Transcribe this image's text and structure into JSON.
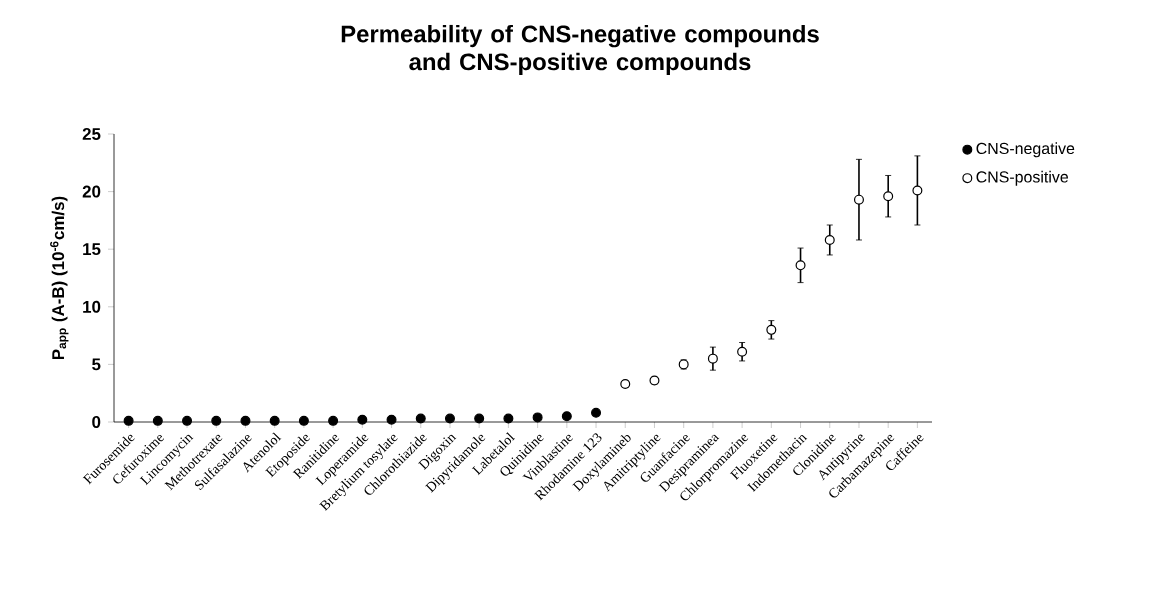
{
  "chart_data": {
    "type": "scatter",
    "title": "Permeability of CNS-negative compounds and CNS-positive compounds",
    "ylabel": "P$_{app}$ (A-B) (10$^{-6}$cm/s)",
    "categories": [
      "Furosemide",
      "Cefuroxime",
      "Lincomycin",
      "Methotrexate",
      "Sulfasalazine",
      "Atenolol",
      "Etoposide",
      "Ranitidine",
      "Loperamide",
      "Bretylium tosylate",
      "Chlorothiazide",
      "Digoxin",
      "Dipyridamole",
      "Labetalol",
      "Quinidine",
      "Vinblastine",
      "Rhodamine 123",
      "Doxylamineb",
      "Amitriptyline",
      "Guanfacine",
      "Desipraminea",
      "Chlorpromazine",
      "Fluoxetine",
      "Indomethacin",
      "Clonidine",
      "Antipyrine",
      "Carbamazepine",
      "Caffeine"
    ],
    "series": [
      {
        "name": "CNS-negative",
        "color": "#000000",
        "values": [
          0.1,
          0.1,
          0.1,
          0.1,
          0.1,
          0.1,
          0.1,
          0.1,
          0.2,
          0.2,
          0.3,
          0.3,
          0.3,
          0.3,
          0.4,
          0.5,
          0.8,
          null,
          null,
          null,
          null,
          null,
          null,
          null,
          null,
          null,
          null,
          null
        ]
      },
      {
        "name": "CNS-positive",
        "color": "#000000",
        "values": [
          null,
          null,
          null,
          null,
          null,
          null,
          null,
          null,
          null,
          null,
          null,
          null,
          null,
          null,
          null,
          null,
          null,
          3.3,
          3.6,
          5.0,
          5.5,
          6.1,
          8.0,
          13.6,
          15.8,
          19.3,
          19.6,
          20.1
        ],
        "errors": [
          null,
          null,
          null,
          null,
          null,
          null,
          null,
          null,
          null,
          null,
          null,
          null,
          null,
          null,
          null,
          null,
          null,
          0.3,
          0.3,
          0.4,
          1.0,
          0.8,
          0.8,
          1.5,
          1.3,
          3.5,
          1.8,
          3.0
        ]
      }
    ],
    "ylim": [
      0,
      25
    ],
    "yticks": [
      0,
      5,
      10,
      15,
      20,
      25
    ],
    "marker": "circle",
    "legend": "right",
    "grid": false
  }
}
